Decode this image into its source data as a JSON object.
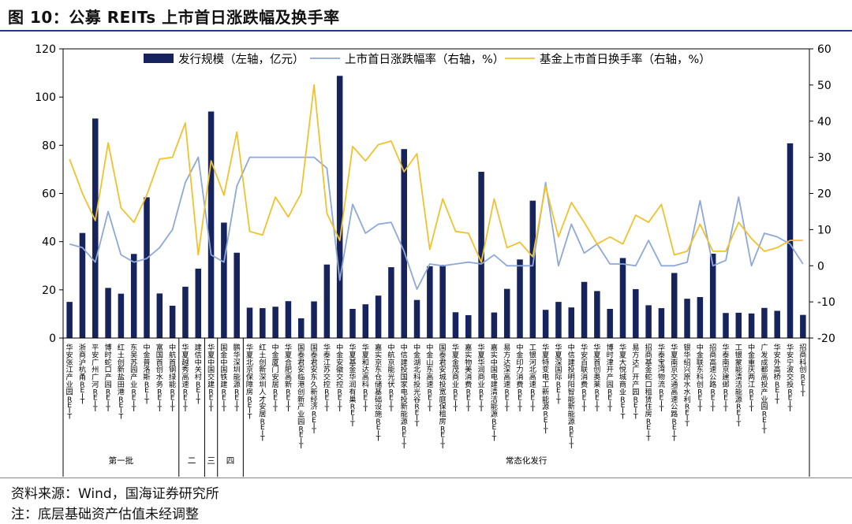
{
  "figure_title": "图 10：公募 REITs 上市首日涨跌幅及换手率",
  "source": "资料来源：Wind，国海证券研究所",
  "note": "注：底层基础资产估值未经调整",
  "chart_data": {
    "type": "bar+line",
    "y_left": {
      "ylim": [
        0,
        120
      ],
      "ticks": [
        "0",
        "20",
        "40",
        "60",
        "80",
        "100",
        "120"
      ]
    },
    "y_right": {
      "ylim": [
        -20,
        60
      ],
      "ticks": [
        "-20",
        "-10",
        "0",
        "10",
        "20",
        "30",
        "40",
        "50",
        "60"
      ]
    },
    "legend": {
      "placement": "top",
      "items": [
        "发行规模（左轴，亿元）",
        "上市首日涨跌幅率（右轴，%）",
        "基金上市首日换手率（右轴，%）"
      ]
    },
    "colors": {
      "bar": "#16235c",
      "pct": "#8ea8d8",
      "turnover": "#f2c12e"
    },
    "categories": [
      "华安张江产业园REIT",
      "浙商沪杭甬REIT",
      "平安广州广河REIT",
      "博时蛇口产园REIT",
      "红土创新盐田港REIT",
      "东吴苏园产业REIT",
      "中金普洛斯REIT",
      "富国首创水务REIT",
      "中航首钢绿能REIT",
      "华夏越秀高速REIT",
      "建信中关村REIT",
      "华夏中国交建REIT",
      "国金中国铁建REIT",
      "鹏华深圳能源REIT",
      "华夏北京保障房REIT",
      "红土创新深圳人才安居REIT",
      "中金厦门安居REIT",
      "华夏合肥高新REIT",
      "国泰君安临港创新产业园REIT",
      "国泰君安东久新经济REIT",
      "华泰江苏交控REIT",
      "中金安徽交控REIT",
      "华夏基金华润有巢REIT",
      "华夏和达高科REIT",
      "嘉实京东仓储基础设施REIT",
      "中航京能光伏REIT",
      "中信建投国家电投新能源REIT",
      "中金湖北科投光谷REIT",
      "中金山东高速REIT",
      "国泰君安城投宽庭保租房REIT",
      "华夏金茂商业REIT",
      "嘉实物美消费REIT",
      "华夏华润商业REIT",
      "嘉实中国电建清洁能源REIT",
      "易方达深高速REIT",
      "中金印力消费REIT",
      "工银河北高速REIT",
      "华夏特变电工新能源REIT",
      "华夏深国际REIT",
      "中信建投明阳智能新能源REIT",
      "华安百联消费REIT",
      "华夏首创奥莱REIT",
      "博时津开产园REIT",
      "华夏大悦城商业REIT",
      "易方达广开产园REIT",
      "招商基金蛇口租赁住房REIT",
      "华泰宝湾物流REIT",
      "华夏南京交通高速公路REIT",
      "银华绍兴原水水利REIT",
      "中金联东科创REIT",
      "招商高速公路REIT",
      "华泰南京建邺REIT",
      "工银蒙能清洁能源REIT",
      "中金重庆两江REIT",
      "广发成都高投产业园REIT",
      "华安外高桥REIT",
      "华安宁波交投REIT",
      "招商科创REIT"
    ],
    "batch_labels": [
      "第一批",
      "二",
      "三",
      "四",
      "常态化发行"
    ],
    "series": [
      {
        "name": "发行规模（左轴，亿元）",
        "type": "bar",
        "axis": "left",
        "values": [
          15,
          43.6,
          91.1,
          20.8,
          18.4,
          34.9,
          58.4,
          18.5,
          13.4,
          21.3,
          28.8,
          94,
          47.9,
          35.4,
          12.6,
          12.4,
          13,
          15.3,
          8.2,
          15.2,
          30.5,
          108.8,
          12.1,
          14,
          17.6,
          29.4,
          78.4,
          15.8,
          29.8,
          30.4,
          10.7,
          9.5,
          69,
          10.6,
          20.4,
          32.6,
          57,
          11.7,
          15,
          12.7,
          23.3,
          19.5,
          12.1,
          33.2,
          20.3,
          13.6,
          12.4,
          27,
          16.3,
          17,
          35,
          10.4,
          10.5,
          10.2,
          12.5,
          11.3,
          80.8,
          9.6
        ]
      },
      {
        "name": "上市首日涨跌幅率（右轴，%）",
        "type": "line",
        "axis": "right",
        "values": [
          6,
          5,
          1,
          15,
          3,
          1,
          2,
          5,
          10,
          23,
          30,
          3,
          1,
          22,
          30,
          30,
          30,
          30,
          30,
          30,
          27,
          -4,
          17,
          9,
          11.5,
          12,
          4,
          -6.5,
          0.5,
          0,
          0.5,
          1,
          0.5,
          3,
          0,
          0,
          0,
          23,
          0,
          11.5,
          3.5,
          6,
          0.5,
          0.5,
          0,
          7,
          0,
          0,
          1,
          18,
          0,
          1.5,
          19,
          0,
          9,
          8,
          6,
          0.5
        ]
      },
      {
        "name": "基金上市首日换手率（右轴，%）",
        "type": "line",
        "axis": "right",
        "values": [
          29.5,
          20,
          12.5,
          34,
          16,
          12,
          19.5,
          29.5,
          30,
          39.5,
          3,
          29,
          19.5,
          37,
          9.5,
          8.5,
          19,
          13.5,
          20,
          50,
          14.5,
          7,
          33,
          29,
          33.5,
          34.5,
          26,
          31,
          4.5,
          18.5,
          9.5,
          9,
          1,
          18.5,
          5,
          6.5,
          2.5,
          22,
          8,
          17.5,
          12,
          6,
          8,
          6,
          14,
          12,
          17,
          3,
          4,
          11.5,
          4,
          4,
          12,
          7.5,
          4,
          5,
          7,
          7
        ]
      }
    ]
  }
}
